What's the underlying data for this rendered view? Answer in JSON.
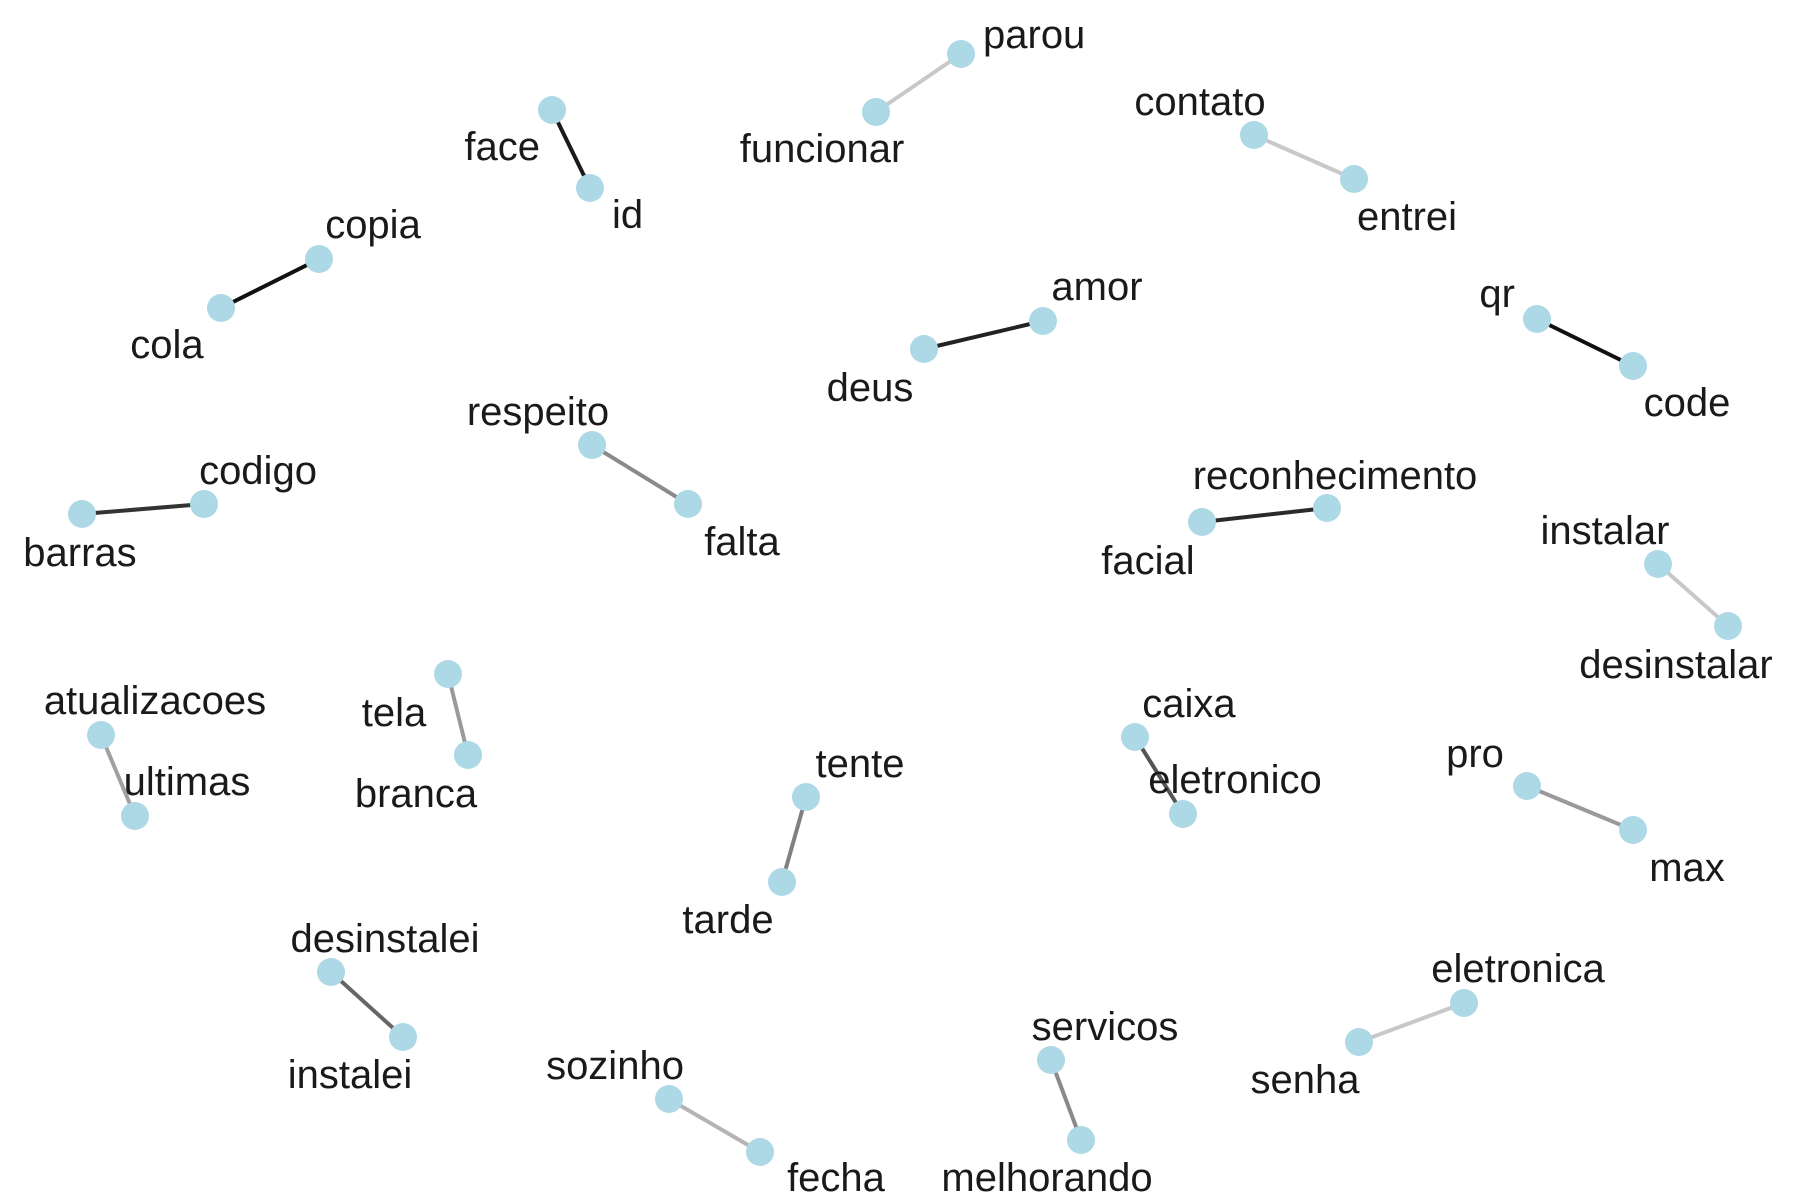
{
  "node_color": "#add8e6",
  "pairs": [
    {
      "a": "face",
      "b": "id",
      "edge_color": "#1a1a1a"
    },
    {
      "a": "funcionar",
      "b": "parou",
      "edge_color": "#c8c8c8"
    },
    {
      "a": "contato",
      "b": "entrei",
      "edge_color": "#c8c8c8"
    },
    {
      "a": "cola",
      "b": "copia",
      "edge_color": "#111111"
    },
    {
      "a": "deus",
      "b": "amor",
      "edge_color": "#222222"
    },
    {
      "a": "qr",
      "b": "code",
      "edge_color": "#111111"
    },
    {
      "a": "respeito",
      "b": "falta",
      "edge_color": "#8a8a8a"
    },
    {
      "a": "barras",
      "b": "codigo",
      "edge_color": "#333333"
    },
    {
      "a": "facial",
      "b": "reconhecimento",
      "edge_color": "#2a2a2a"
    },
    {
      "a": "instalar",
      "b": "desinstalar",
      "edge_color": "#c8c8c8"
    },
    {
      "a": "atualizacoes",
      "b": "ultimas",
      "edge_color": "#a0a0a0"
    },
    {
      "a": "tela",
      "b": "branca",
      "edge_color": "#9a9a9a"
    },
    {
      "a": "caixa",
      "b": "eletronico",
      "edge_color": "#555555"
    },
    {
      "a": "tente",
      "b": "tarde",
      "edge_color": "#808080"
    },
    {
      "a": "pro",
      "b": "max",
      "edge_color": "#9a9a9a"
    },
    {
      "a": "desinstalei",
      "b": "instalei",
      "edge_color": "#666666"
    },
    {
      "a": "servicos",
      "b": "melhorando",
      "edge_color": "#8a8a8a"
    },
    {
      "a": "senha",
      "b": "eletronica",
      "edge_color": "#c8c8c8"
    },
    {
      "a": "sozinho",
      "b": "fecha",
      "edge_color": "#b4b4b4"
    }
  ]
}
